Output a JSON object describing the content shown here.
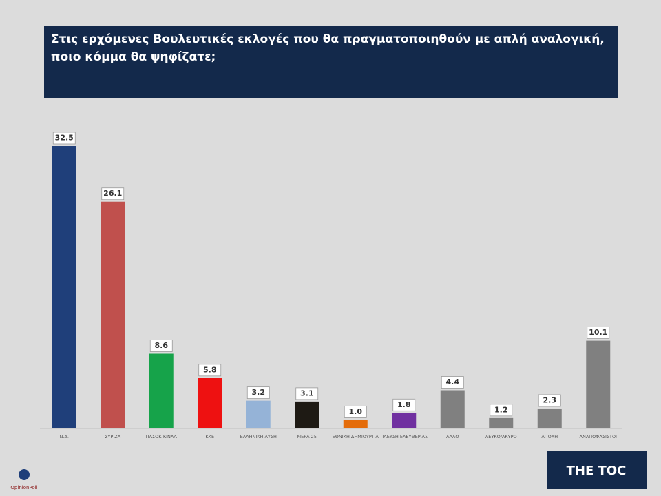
{
  "chart_data": {
    "type": "bar",
    "title": "Στις ερχόμενες Βουλευτικές εκλογές που θα πραγματοποιηθούν με απλή αναλογική, ποιο κόμμα θα ψηφίζατε;",
    "categories": [
      "Ν.Δ.",
      "ΣΥΡΙΖΑ",
      "ΠΑΣΟΚ-ΚΙΝΑΛ",
      "ΚΚΕ",
      "ΕΛΛΗΝΙΚΗ ΛΥΣΗ",
      "ΜΕΡΑ 25",
      "ΕΘΝΙΚΗ ΔΗΜΙΟΥΡΓΙΑ",
      "ΠΛΕΥΣΗ ΕΛΕΥΘΕΡΙΑΣ",
      "ΑΛΛΟ",
      "ΛΕΥΚΟ/ΑΚΥΡΟ",
      "ΑΠΟΧΗ",
      "ΑΝΑΠΟΦΑΣΙΣΤΟΙ"
    ],
    "values": [
      32.5,
      26.1,
      8.6,
      5.8,
      3.2,
      3.1,
      1.0,
      1.8,
      4.4,
      1.2,
      2.3,
      10.1
    ],
    "value_labels": [
      "32.5",
      "26.1",
      "8.6",
      "5.8",
      "3.2",
      "3.1",
      "1.0",
      "1.8",
      "4.4",
      "1.2",
      "2.3",
      "10.1"
    ],
    "colors": [
      "#1f3f7a",
      "#c0504d",
      "#16a34a",
      "#ee1111",
      "#95b3d7",
      "#1e1a14",
      "#e46c0a",
      "#7030a0",
      "#808080",
      "#808080",
      "#808080",
      "#808080"
    ]
  },
  "brand": "THE TOC",
  "source": "OpinionPoll"
}
